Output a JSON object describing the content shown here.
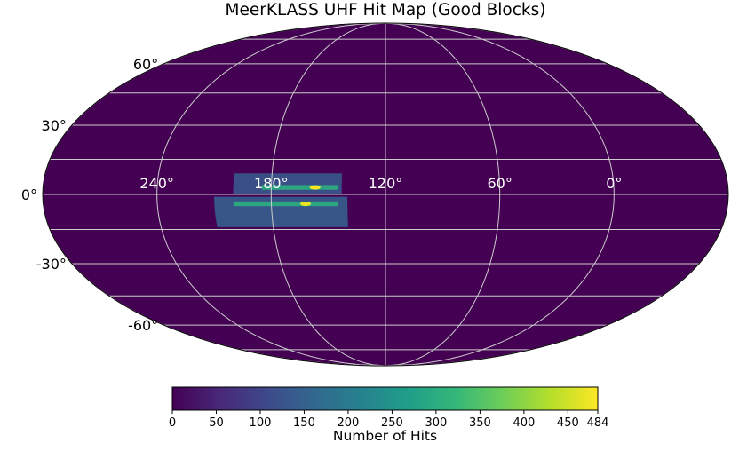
{
  "chart_data": {
    "type": "heatmap",
    "projection": "mollweide",
    "title": "MeerKLASS UHF Hit Map (Good Blocks)",
    "longitude_ticks": [
      "240°",
      "180°",
      "120°",
      "60°",
      "0°"
    ],
    "longitude_tick_values": [
      240,
      180,
      120,
      60,
      0
    ],
    "latitude_ticks": [
      "60°",
      "30°",
      "0°",
      "-30°",
      "-60°"
    ],
    "latitude_tick_values": [
      60,
      30,
      0,
      -30,
      -60
    ],
    "grid": true,
    "colormap": "viridis",
    "background_value": 0,
    "colorbar": {
      "label": "Number of Hits",
      "range": [
        0,
        484
      ],
      "ticks": [
        "0",
        "50",
        "100",
        "150",
        "200",
        "250",
        "300",
        "350",
        "400",
        "450",
        "484"
      ],
      "tick_values": [
        0,
        50,
        100,
        150,
        200,
        250,
        300,
        350,
        400,
        450,
        484
      ],
      "orientation": "horizontal",
      "placement": "bottom"
    },
    "coverage_regions": [
      {
        "name": "north strip",
        "lon_range": [
          143,
          200
        ],
        "lat_range": [
          0,
          9
        ],
        "approx_hits": 130
      },
      {
        "name": "south strip",
        "lon_range": [
          140,
          210
        ],
        "lat_range": [
          -14,
          -1
        ],
        "approx_hits": 140
      },
      {
        "name": "overlap band north",
        "lon_range": [
          145,
          185
        ],
        "lat_range": [
          2,
          4
        ],
        "approx_hits": 300
      },
      {
        "name": "overlap band south",
        "lon_range": [
          145,
          200
        ],
        "lat_range": [
          -5,
          -3
        ],
        "approx_hits": 300
      },
      {
        "name": "peak north",
        "lon": 157,
        "lat": 3,
        "approx_hits": 484
      },
      {
        "name": "peak south",
        "lon": 162,
        "lat": -4,
        "approx_hits": 470
      }
    ]
  },
  "colors": {
    "background_value": "#440154",
    "grid": "#cccccc",
    "outline": "#000000"
  }
}
